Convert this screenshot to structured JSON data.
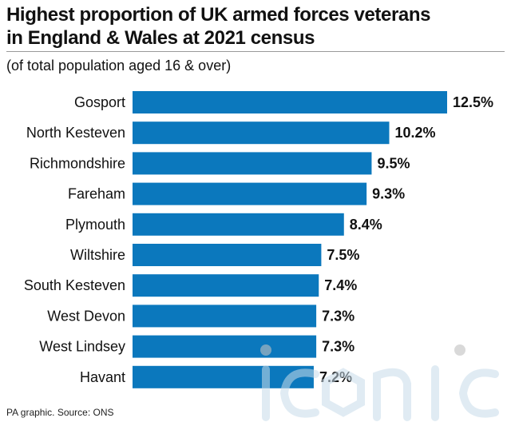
{
  "title_lines": [
    "Highest proportion of UK armed forces veterans",
    "in England & Wales at 2021 census"
  ],
  "subtitle": "(of total population aged 16 & over)",
  "source": "PA graphic. Source: ONS",
  "watermark": "iconic",
  "colors": {
    "bar": "#0b78bd",
    "text": "#111111"
  },
  "chart_data": {
    "type": "bar",
    "orientation": "horizontal",
    "categories": [
      "Gosport",
      "North Kesteven",
      "Richmondshire",
      "Fareham",
      "Plymouth",
      "Wiltshire",
      "South Kesteven",
      "West Devon",
      "West Lindsey",
      "Havant"
    ],
    "values": [
      12.5,
      10.2,
      9.5,
      9.3,
      8.4,
      7.5,
      7.4,
      7.3,
      7.3,
      7.2
    ],
    "value_labels": [
      "12.5%",
      "10.2%",
      "9.5%",
      "9.3%",
      "8.4%",
      "7.5%",
      "7.4%",
      "7.3%",
      "7.3%",
      "7.2%"
    ],
    "unit": "%",
    "xlim": [
      0,
      12.5
    ],
    "grid": false,
    "legend": "none"
  }
}
